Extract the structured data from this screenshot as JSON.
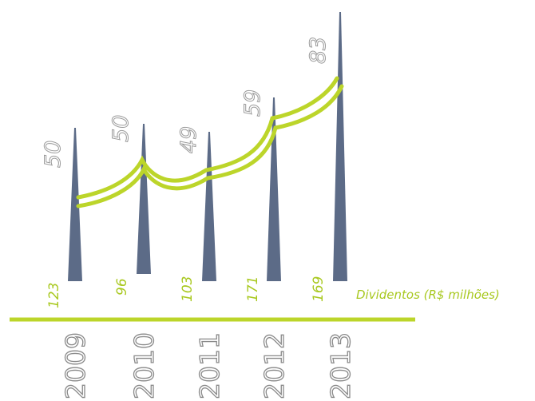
{
  "chart_data": {
    "type": "bar",
    "categories": [
      "2009",
      "2010",
      "2011",
      "2012",
      "2013"
    ],
    "series": [
      {
        "values": [
          50,
          50,
          49,
          59,
          83
        ]
      },
      {
        "name": "Dividentos (R$ milhões)",
        "values": [
          123,
          96,
          103,
          171,
          169
        ]
      }
    ],
    "title": "",
    "xlabel": "",
    "ylabel": "",
    "legend_position": "right",
    "grid": false
  },
  "colors": {
    "bar": "#5c6b87",
    "accent": "#bcd52a",
    "accent_text": "#a8c81e",
    "label_outline": "#9a9a9a",
    "year_outline": "#8a8a8a"
  }
}
